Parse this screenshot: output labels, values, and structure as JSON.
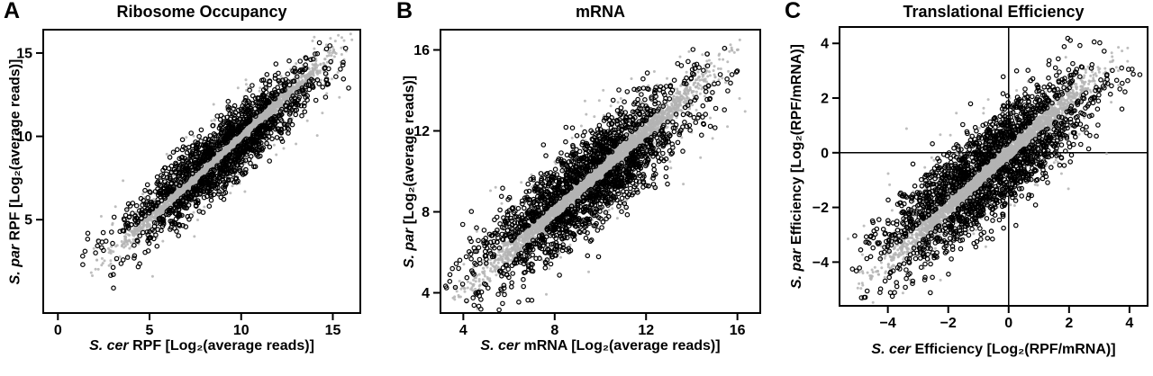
{
  "figure": {
    "background": "#ffffff",
    "frame_color": "#000000",
    "nonsignificant_point_color": "#b3b3b3",
    "significant_point_color": "#000000"
  },
  "chart_data": [
    {
      "type": "scatter",
      "panel_label": "A",
      "title": "Ribosome Occupancy",
      "xlabel_italic": "S. cer",
      "xlabel_rest": " RPF [Log₂(average reads)]",
      "ylabel_italic": "S. par",
      "ylabel_rest": " RPF [Log₂(average reads)]",
      "xlim": [
        -0.8,
        16.5
      ],
      "ylim": [
        -0.6,
        16.4
      ],
      "xticks": [
        0,
        5,
        10,
        15
      ],
      "yticks": [
        5,
        10,
        15
      ],
      "grid": false,
      "legend": false,
      "zero_lines": false,
      "seed": 101,
      "series": [
        {
          "name": "gray-points",
          "marker": "dot",
          "color": "#b3b3b3",
          "n": 3200,
          "diag_mean": 9.2,
          "diag_sd": 2.4,
          "resid_sd": 0.33,
          "resid_max": 0.7,
          "clip": [
            1.6,
            16.1
          ]
        },
        {
          "name": "gray-outlier-points",
          "marker": "dot-spread",
          "color": "#b3b3b3",
          "n": 260,
          "diag_mean": 9.6,
          "diag_sd": 2.8,
          "resid_sd": 1.6,
          "clip": [
            1.6,
            16.1
          ]
        },
        {
          "name": "black-points",
          "marker": "open-circle",
          "color": "#000000",
          "n": 1400,
          "diag_mean": 8.8,
          "diag_sd": 2.5,
          "resid_min": 0.4,
          "resid_sd": 0.9,
          "clip": [
            1.8,
            15.6
          ]
        }
      ]
    },
    {
      "type": "scatter",
      "panel_label": "B",
      "title": "mRNA",
      "xlabel_italic": "S. cer",
      "xlabel_rest": " mRNA [Log₂(average reads)]",
      "ylabel_italic": "S. par",
      "ylabel_rest": " [Log₂(average reads)]",
      "xlim": [
        3.0,
        17.0
      ],
      "ylim": [
        3.0,
        17.0
      ],
      "xticks": [
        4,
        8,
        12,
        16
      ],
      "yticks": [
        4,
        8,
        12,
        16
      ],
      "grid": false,
      "legend": false,
      "zero_lines": false,
      "seed": 202,
      "series": [
        {
          "name": "gray-points",
          "marker": "dot",
          "color": "#b3b3b3",
          "n": 3400,
          "diag_mean": 9.7,
          "diag_sd": 2.2,
          "resid_sd": 0.36,
          "resid_max": 0.75,
          "clip": [
            3.5,
            16.4
          ]
        },
        {
          "name": "gray-outlier-points",
          "marker": "dot-spread",
          "color": "#b3b3b3",
          "n": 260,
          "diag_mean": 10.0,
          "diag_sd": 2.6,
          "resid_sd": 1.6,
          "clip": [
            3.4,
            16.5
          ]
        },
        {
          "name": "black-points",
          "marker": "open-circle",
          "color": "#000000",
          "n": 1700,
          "diag_mean": 9.4,
          "diag_sd": 2.3,
          "resid_min": 0.45,
          "resid_sd": 1.0,
          "clip": [
            3.7,
            16.0
          ]
        }
      ]
    },
    {
      "type": "scatter",
      "panel_label": "C",
      "title": "Translational Efficiency",
      "xlabel_italic": "S. cer",
      "xlabel_rest": " Efficiency [Log₂(RPF/mRNA)]",
      "ylabel_italic": "S. par",
      "ylabel_rest": " Efficiency [Log₂(RPF/mRNA)]",
      "xlim": [
        -5.6,
        4.6
      ],
      "ylim": [
        -5.6,
        4.6
      ],
      "xticks": [
        -4,
        -2,
        0,
        2,
        4
      ],
      "yticks": [
        -4,
        -2,
        0,
        2,
        4
      ],
      "grid": false,
      "legend": false,
      "zero_lines": true,
      "seed": 303,
      "series": [
        {
          "name": "gray-points",
          "marker": "dot",
          "color": "#b3b3b3",
          "n": 3200,
          "diag_mean": -0.6,
          "diag_sd": 1.5,
          "resid_sd": 0.28,
          "resid_max": 0.6,
          "clip": [
            -5.0,
            3.9
          ]
        },
        {
          "name": "gray-outlier-points",
          "marker": "dot-spread",
          "color": "#b3b3b3",
          "n": 320,
          "diag_mean": -1.2,
          "diag_sd": 2.0,
          "resid_sd": 1.3,
          "clip": [
            -5.4,
            4.2
          ]
        },
        {
          "name": "black-points",
          "marker": "open-circle",
          "color": "#000000",
          "n": 1700,
          "diag_mean": -0.7,
          "diag_sd": 1.7,
          "resid_min": 0.35,
          "resid_sd": 0.8,
          "clip": [
            -5.2,
            3.7
          ]
        }
      ]
    }
  ]
}
